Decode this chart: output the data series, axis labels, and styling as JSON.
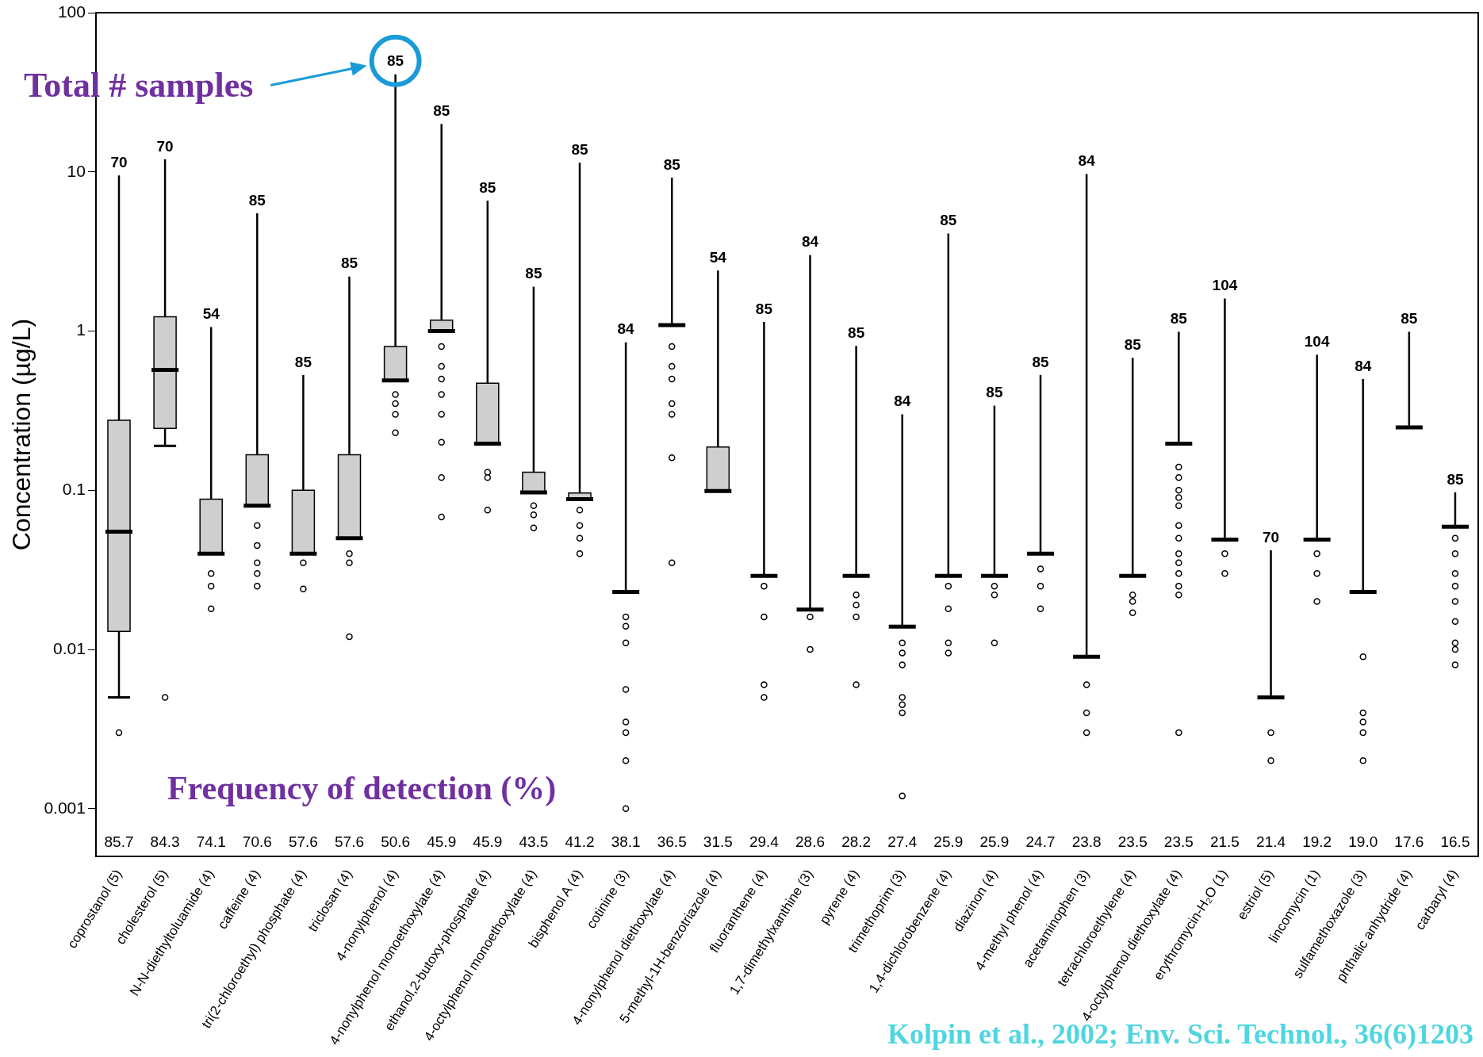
{
  "chart_data": {
    "type": "box",
    "ylabel": "Concentration (µg/L)",
    "log": true,
    "grid": false,
    "legend": false,
    "colors": [
      "#cfcfcf",
      "#cfcfcf",
      "#cfcfcf",
      "#cfcfcf",
      "#cfcfcf",
      "#cfcfcf",
      "#cfcfcf",
      "#cfcfcf",
      "#cfcfcf",
      "#cfcfcf",
      "#cfcfcf",
      "#000000",
      "#000000",
      "#cfcfcf",
      "#000000",
      "#000000",
      "#000000",
      "#000000",
      "#000000",
      "#000000",
      "#000000",
      "#000000",
      "#000000",
      "#000000",
      "#000000",
      "#000000",
      "#000000",
      "#000000",
      "#000000",
      "#000000"
    ],
    "ylim": [
      0.0005,
      100
    ],
    "yticks": [
      0.001,
      0.01,
      0.1,
      1,
      10,
      100
    ],
    "categories": [
      "coprostanol (5)",
      "cholesterol (5)",
      "N-N-diethyltoluamide (4)",
      "caffeine (4)",
      "tri(2-chloroethyl) phosphate (4)",
      "triclosan (4)",
      "4-nonylphenol (4)",
      "4-nonylphenol monoethoxylate (4)",
      "ethanol,2-butoxy-phosphate (4)",
      "4-octylphenol monoethoxylate (4)",
      "bisphenol A (4)",
      "cotinine (3)",
      "4-nonylphenol diethoxylate (4)",
      "5-methyl-1H-benzotriazole (4)",
      "fluoranthene (4)",
      "1,7-dimethylxanthine (3)",
      "pyrene (4)",
      "trimethoprim (3)",
      "1,4-dichlorobenzene (4)",
      "diazinon (4)",
      "4-methyl phenol (4)",
      "acetaminophen (3)",
      "tetrachloroethylene (4)",
      "4-octylphenol diethoxylate (4)",
      "erythromycin-H₂O (1)",
      "estriol (5)",
      "lincomycin (1)",
      "sulfamethoxazole (3)",
      "phthalic anhydride (4)",
      "carbaryl (4)"
    ],
    "boxes": [
      {
        "low": 0.005,
        "q1": 0.013,
        "median": 0.055,
        "q3": 0.275,
        "high": 9.5,
        "outliers": [
          0.003
        ]
      },
      {
        "low": 0.19,
        "q1": 0.245,
        "median": 0.57,
        "q3": 1.23,
        "high": 12,
        "outliers": [
          0.005
        ]
      },
      {
        "low": 0.04,
        "q1": 0.04,
        "median": 0.04,
        "q3": 0.088,
        "high": 1.06,
        "outliers": [
          0.03,
          0.025,
          0.018
        ]
      },
      {
        "low": 0.08,
        "q1": 0.08,
        "median": 0.08,
        "q3": 0.167,
        "high": 5.5,
        "outliers": [
          0.06,
          0.045,
          0.035,
          0.03,
          0.025
        ]
      },
      {
        "low": 0.04,
        "q1": 0.04,
        "median": 0.04,
        "q3": 0.1,
        "high": 0.53,
        "outliers": [
          0.035,
          0.024
        ]
      },
      {
        "low": 0.05,
        "q1": 0.05,
        "median": 0.05,
        "q3": 0.167,
        "high": 2.2,
        "outliers": [
          0.04,
          0.035,
          0.012
        ]
      },
      {
        "low": 0.49,
        "q1": 0.49,
        "median": 0.49,
        "q3": 0.8,
        "high": 41,
        "outliers": [
          0.4,
          0.35,
          0.3,
          0.23
        ]
      },
      {
        "low": 1,
        "q1": 1,
        "median": 1,
        "q3": 1.17,
        "high": 20,
        "outliers": [
          0.8,
          0.6,
          0.5,
          0.4,
          0.3,
          0.2,
          0.12,
          0.068
        ]
      },
      {
        "low": 0.196,
        "q1": 0.196,
        "median": 0.196,
        "q3": 0.47,
        "high": 6.6,
        "outliers": [
          0.13,
          0.12,
          0.075
        ]
      },
      {
        "low": 0.097,
        "q1": 0.097,
        "median": 0.097,
        "q3": 0.13,
        "high": 1.9,
        "outliers": [
          0.08,
          0.07,
          0.058
        ]
      },
      {
        "low": 0.088,
        "q1": 0.088,
        "median": 0.088,
        "q3": 0.096,
        "high": 11.4,
        "outliers": [
          0.075,
          0.06,
          0.05,
          0.04
        ]
      },
      {
        "low": 0.023,
        "q1": 0.023,
        "median": 0.023,
        "q3": 0.023,
        "high": 0.85,
        "outliers": [
          0.016,
          0.014,
          0.011,
          0.0056,
          0.0035,
          0.003,
          0.002,
          0.001
        ]
      },
      {
        "low": 1.09,
        "q1": 1.09,
        "median": 1.09,
        "q3": 1.09,
        "high": 9.2,
        "outliers": [
          0.8,
          0.6,
          0.5,
          0.35,
          0.3,
          0.16,
          0.035
        ]
      },
      {
        "low": 0.099,
        "q1": 0.099,
        "median": 0.099,
        "q3": 0.187,
        "high": 2.4
      },
      {
        "low": 0.029,
        "q1": 0.029,
        "median": 0.029,
        "q3": 0.029,
        "high": 1.14,
        "outliers": [
          0.025,
          0.016,
          0.006,
          0.005
        ]
      },
      {
        "low": 0.0178,
        "q1": 0.0178,
        "median": 0.0178,
        "q3": 0.0178,
        "high": 3,
        "outliers": [
          0.016,
          0.01
        ]
      },
      {
        "low": 0.029,
        "q1": 0.029,
        "median": 0.029,
        "q3": 0.029,
        "high": 0.81,
        "outliers": [
          0.022,
          0.019,
          0.016,
          0.006
        ]
      },
      {
        "low": 0.0139,
        "q1": 0.0139,
        "median": 0.0139,
        "q3": 0.0139,
        "high": 0.3,
        "outliers": [
          0.011,
          0.0095,
          0.008,
          0.005,
          0.0045,
          0.004,
          0.0012
        ]
      },
      {
        "low": 0.029,
        "q1": 0.029,
        "median": 0.029,
        "q3": 0.029,
        "high": 4.1,
        "outliers": [
          0.025,
          0.018,
          0.011,
          0.0095
        ]
      },
      {
        "low": 0.029,
        "q1": 0.029,
        "median": 0.029,
        "q3": 0.029,
        "high": 0.34,
        "outliers": [
          0.025,
          0.022,
          0.011
        ]
      },
      {
        "low": 0.04,
        "q1": 0.04,
        "median": 0.04,
        "q3": 0.04,
        "high": 0.53,
        "outliers": [
          0.032,
          0.025,
          0.018
        ]
      },
      {
        "low": 0.009,
        "q1": 0.009,
        "median": 0.009,
        "q3": 0.009,
        "high": 9.7,
        "outliers": [
          0.006,
          0.004,
          0.003
        ]
      },
      {
        "low": 0.029,
        "q1": 0.029,
        "median": 0.029,
        "q3": 0.029,
        "high": 0.68,
        "outliers": [
          0.022,
          0.02,
          0.017
        ]
      },
      {
        "low": 0.196,
        "q1": 0.196,
        "median": 0.196,
        "q3": 0.196,
        "high": 0.99,
        "outliers": [
          0.14,
          0.12,
          0.1,
          0.09,
          0.08,
          0.06,
          0.05,
          0.04,
          0.035,
          0.03,
          0.025,
          0.022,
          0.003
        ]
      },
      {
        "low": 0.049,
        "q1": 0.049,
        "median": 0.049,
        "q3": 0.049,
        "high": 1.6,
        "outliers": [
          0.04,
          0.03
        ]
      },
      {
        "low": 0.005,
        "q1": 0.005,
        "median": 0.005,
        "q3": 0.005,
        "high": 0.042,
        "outliers": [
          0.003,
          0.002
        ]
      },
      {
        "low": 0.049,
        "q1": 0.049,
        "median": 0.049,
        "q3": 0.049,
        "high": 0.71,
        "outliers": [
          0.04,
          0.03,
          0.02
        ]
      },
      {
        "low": 0.023,
        "q1": 0.023,
        "median": 0.023,
        "q3": 0.023,
        "high": 0.5,
        "outliers": [
          0.009,
          0.004,
          0.0035,
          0.003,
          0.002
        ]
      },
      {
        "low": 0.248,
        "q1": 0.248,
        "median": 0.248,
        "q3": 0.248,
        "high": 0.99
      },
      {
        "low": 0.059,
        "q1": 0.059,
        "median": 0.059,
        "q3": 0.059,
        "high": 0.097,
        "outliers": [
          0.05,
          0.04,
          0.03,
          0.025,
          0.02,
          0.015,
          0.011,
          0.01,
          0.008
        ]
      }
    ],
    "annotations": [
      "Total # samples",
      "Frequency of detection (%)",
      "Kolpin et al., 2002; Env. Sci. Technol., 36(6)1203",
      {
        "text": "70",
        "x": "coprostanol (5)",
        "y": 9.5
      },
      {
        "text": "70",
        "x": "cholesterol (5)",
        "y": 12
      },
      {
        "text": "54",
        "x": "N-N-diethyltoluamide (4)",
        "y": 1.06
      },
      {
        "text": "85",
        "x": "caffeine (4)",
        "y": 5.5
      },
      {
        "text": "85",
        "x": "tri(2-chloroethyl) phosphate (4)",
        "y": 0.53
      },
      {
        "text": "85",
        "x": "triclosan (4)",
        "y": 2.2
      },
      {
        "text": "85",
        "x": "4-nonylphenol (4)",
        "y": 41
      },
      {
        "text": "85",
        "x": "4-nonylphenol monoethoxylate (4)",
        "y": 20
      },
      {
        "text": "85",
        "x": "ethanol,2-butoxy-phosphate (4)",
        "y": 6.6
      },
      {
        "text": "85",
        "x": "4-octylphenol monoethoxylate (4)",
        "y": 1.9
      },
      {
        "text": "85",
        "x": "bisphenol A (4)",
        "y": 11.4
      },
      {
        "text": "84",
        "x": "cotinine (3)",
        "y": 0.85
      },
      {
        "text": "85",
        "x": "4-nonylphenol diethoxylate (4)",
        "y": 9.2
      },
      {
        "text": "54",
        "x": "5-methyl-1H-benzotriazole (4)",
        "y": 2.4
      },
      {
        "text": "85",
        "x": "fluoranthene (4)",
        "y": 1.14
      },
      {
        "text": "84",
        "x": "1,7-dimethylxanthine (3)",
        "y": 3
      },
      {
        "text": "85",
        "x": "pyrene (4)",
        "y": 0.81
      },
      {
        "text": "84",
        "x": "trimethoprim (3)",
        "y": 0.3
      },
      {
        "text": "85",
        "x": "1,4-dichlorobenzene (4)",
        "y": 4.1
      },
      {
        "text": "85",
        "x": "diazinon (4)",
        "y": 0.34
      },
      {
        "text": "85",
        "x": "4-methyl phenol (4)",
        "y": 0.53
      },
      {
        "text": "84",
        "x": "acetaminophen (3)",
        "y": 9.7
      },
      {
        "text": "85",
        "x": "tetrachloroethylene (4)",
        "y": 0.68
      },
      {
        "text": "85",
        "x": "4-octylphenol diethoxylate (4)",
        "y": 0.99
      },
      {
        "text": "104",
        "x": "erythromycin-H₂O (1)",
        "y": 1.6
      },
      {
        "text": "70",
        "x": "estriol (5)",
        "y": 0.042
      },
      {
        "text": "104",
        "x": "lincomycin (1)",
        "y": 0.71
      },
      {
        "text": "84",
        "x": "sulfamethoxazole (3)",
        "y": 0.5
      },
      {
        "text": "85",
        "x": "phthalic anhydride (4)",
        "y": 0.99
      },
      {
        "text": "85",
        "x": "carbaryl (4)",
        "y": 0.097
      },
      "85.7",
      "84.3",
      "74.1",
      "70.6",
      "57.6",
      "57.6",
      "50.6",
      "45.9",
      "45.9",
      "43.5",
      "41.2",
      "38.1",
      "36.5",
      "31.5",
      "29.4",
      "28.6",
      "28.2",
      "27.4",
      "25.9",
      "25.9",
      "24.7",
      "23.8",
      "23.5",
      "23.5",
      "21.5",
      "21.4",
      "19.2",
      "19.0",
      "17.6",
      "16.5"
    ]
  }
}
